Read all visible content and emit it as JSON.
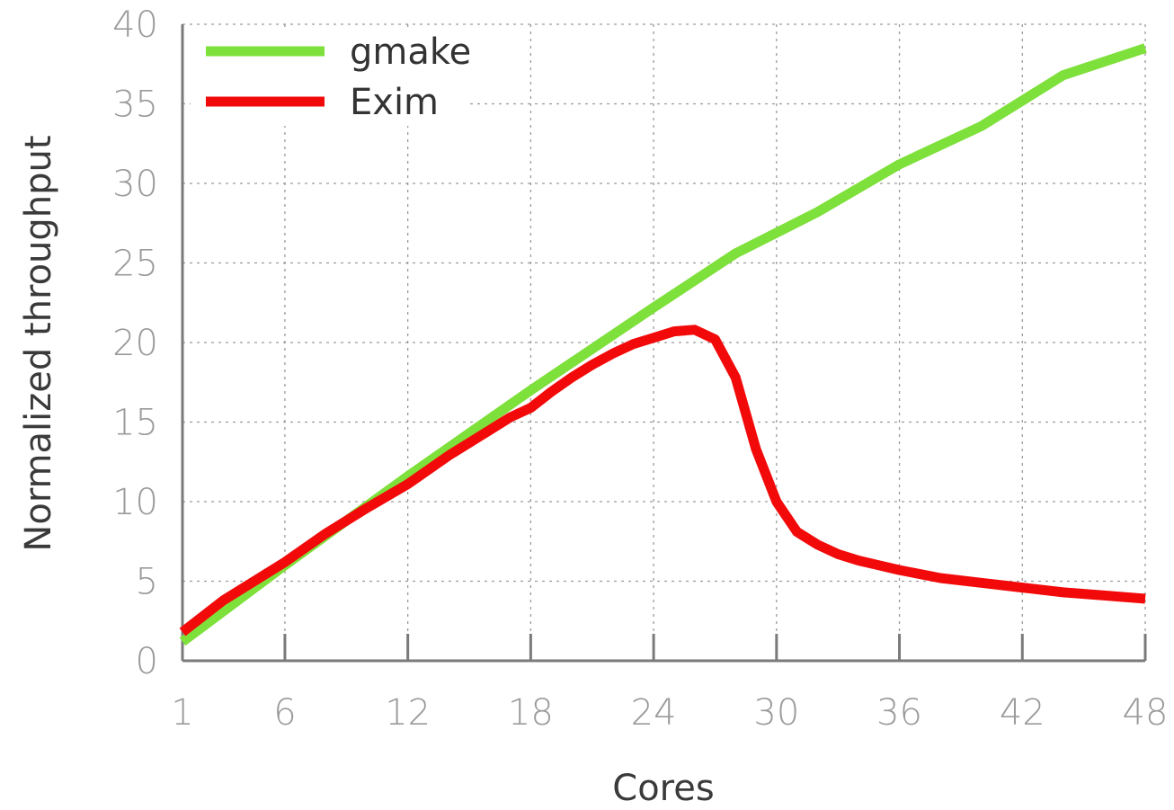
{
  "chart_data": {
    "type": "line",
    "title": "",
    "xlabel": "Cores",
    "ylabel": "Normalized throughput",
    "xlim": [
      1,
      48
    ],
    "ylim": [
      0,
      40
    ],
    "x_ticks": [
      1,
      6,
      12,
      18,
      24,
      30,
      36,
      42,
      48
    ],
    "y_ticks": [
      0,
      5,
      10,
      15,
      20,
      25,
      30,
      35,
      40
    ],
    "grid": true,
    "legend_position": "top-left",
    "series": [
      {
        "name": "gmake",
        "color": "#7ee03a",
        "x": [
          1,
          6,
          12,
          18,
          24,
          28,
          32,
          36,
          40,
          44,
          48
        ],
        "y": [
          1.2,
          6.0,
          11.6,
          17.0,
          22.2,
          25.6,
          28.2,
          31.2,
          33.6,
          36.8,
          38.5
        ]
      },
      {
        "name": "Exim",
        "color": "#f20a0a",
        "x": [
          1,
          3,
          6,
          8,
          10,
          12,
          14,
          16,
          17,
          18,
          19,
          20,
          21,
          22,
          23,
          24,
          25,
          26,
          27,
          28,
          29,
          30,
          31,
          32,
          33,
          34,
          35,
          36,
          38,
          40,
          42,
          44,
          46,
          48
        ],
        "y": [
          1.8,
          3.8,
          6.2,
          8.0,
          9.6,
          11.1,
          12.9,
          14.5,
          15.3,
          15.9,
          16.9,
          17.8,
          18.6,
          19.3,
          19.9,
          20.3,
          20.7,
          20.8,
          20.2,
          17.8,
          13.3,
          10.0,
          8.1,
          7.3,
          6.7,
          6.3,
          6.0,
          5.7,
          5.2,
          4.9,
          4.6,
          4.3,
          4.1,
          3.9
        ]
      }
    ]
  }
}
